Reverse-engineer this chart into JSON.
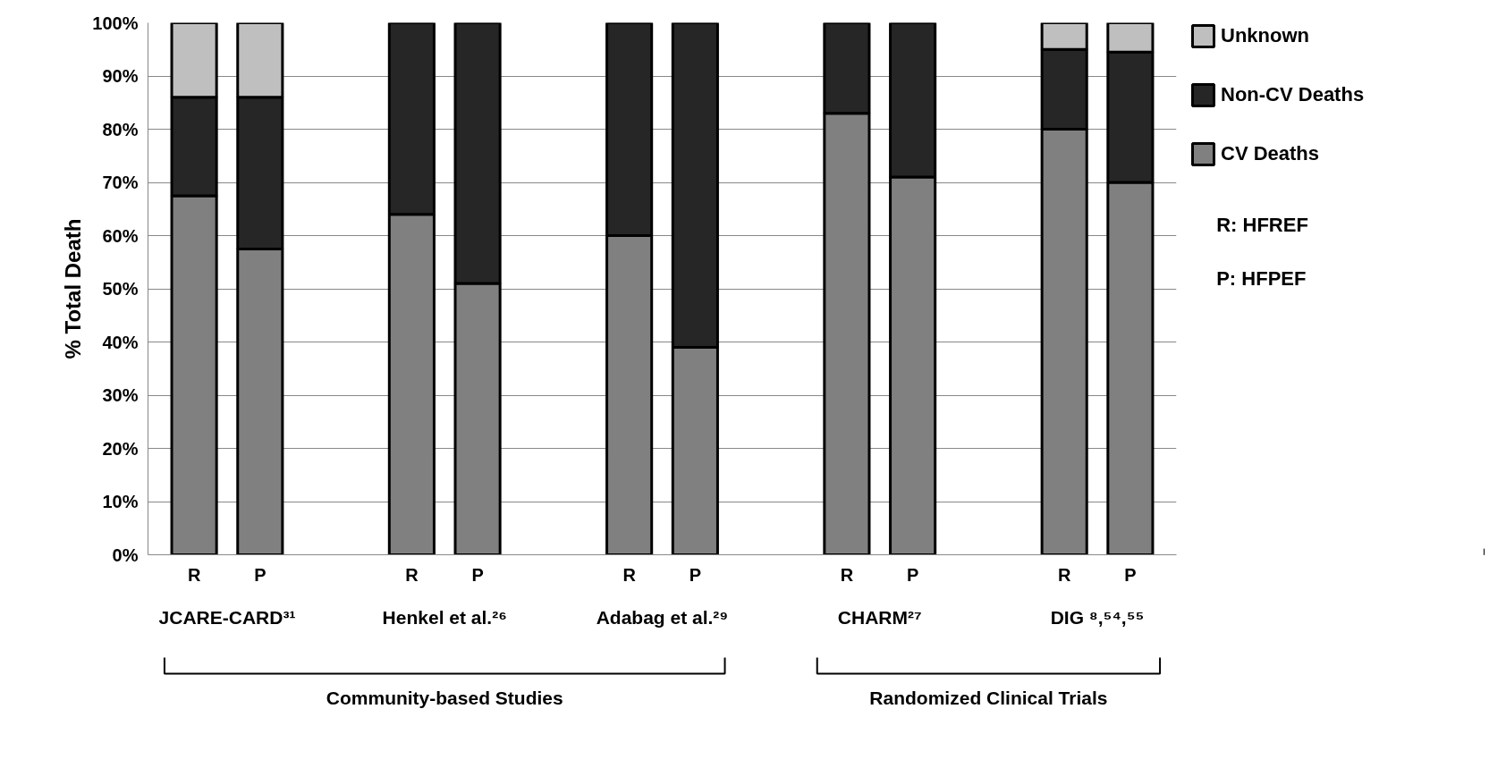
{
  "chart_data": {
    "type": "bar",
    "stacked": true,
    "ylabel": "% Total Death",
    "categories": [
      "R",
      "P",
      "R",
      "P",
      "R",
      "P",
      "R",
      "P",
      "R",
      "P"
    ],
    "series": [
      {
        "name": "CV Deaths",
        "color": "#808080",
        "values": [
          67.5,
          57.5,
          64,
          51,
          60,
          39,
          83,
          71,
          80,
          70
        ]
      },
      {
        "name": "Non-CV Deaths",
        "color": "#262626",
        "values": [
          18.5,
          28.5,
          36,
          49,
          40,
          61,
          17,
          29,
          15,
          24.5
        ]
      },
      {
        "name": "Unknown",
        "color": "#bfbfbf",
        "values": [
          14,
          14,
          0,
          0,
          0,
          0,
          0,
          0,
          5,
          5.5
        ]
      }
    ],
    "ylim": [
      0,
      100
    ],
    "yticks": [
      {
        "value": 0,
        "label": "0%"
      },
      {
        "value": 10,
        "label": "10%"
      },
      {
        "value": 20,
        "label": "20%"
      },
      {
        "value": 30,
        "label": "30%"
      },
      {
        "value": 40,
        "label": "40%"
      },
      {
        "value": 50,
        "label": "50%"
      },
      {
        "value": 60,
        "label": "60%"
      },
      {
        "value": 70,
        "label": "70%"
      },
      {
        "value": 80,
        "label": "80%"
      },
      {
        "value": 90,
        "label": "90%"
      },
      {
        "value": 100,
        "label": "100%"
      }
    ],
    "grid": "y",
    "legend": "right",
    "annotations": [
      "JCARE-CARD³¹",
      "Henkel et al.²⁶",
      "Adabag et al.²⁹",
      "CHARM²⁷",
      "DIG ⁸,⁵⁴,⁵⁵",
      "Community-based Studies",
      "Randomized Clinical Trials",
      "R: HFREF",
      "P: HFPEF"
    ]
  }
}
